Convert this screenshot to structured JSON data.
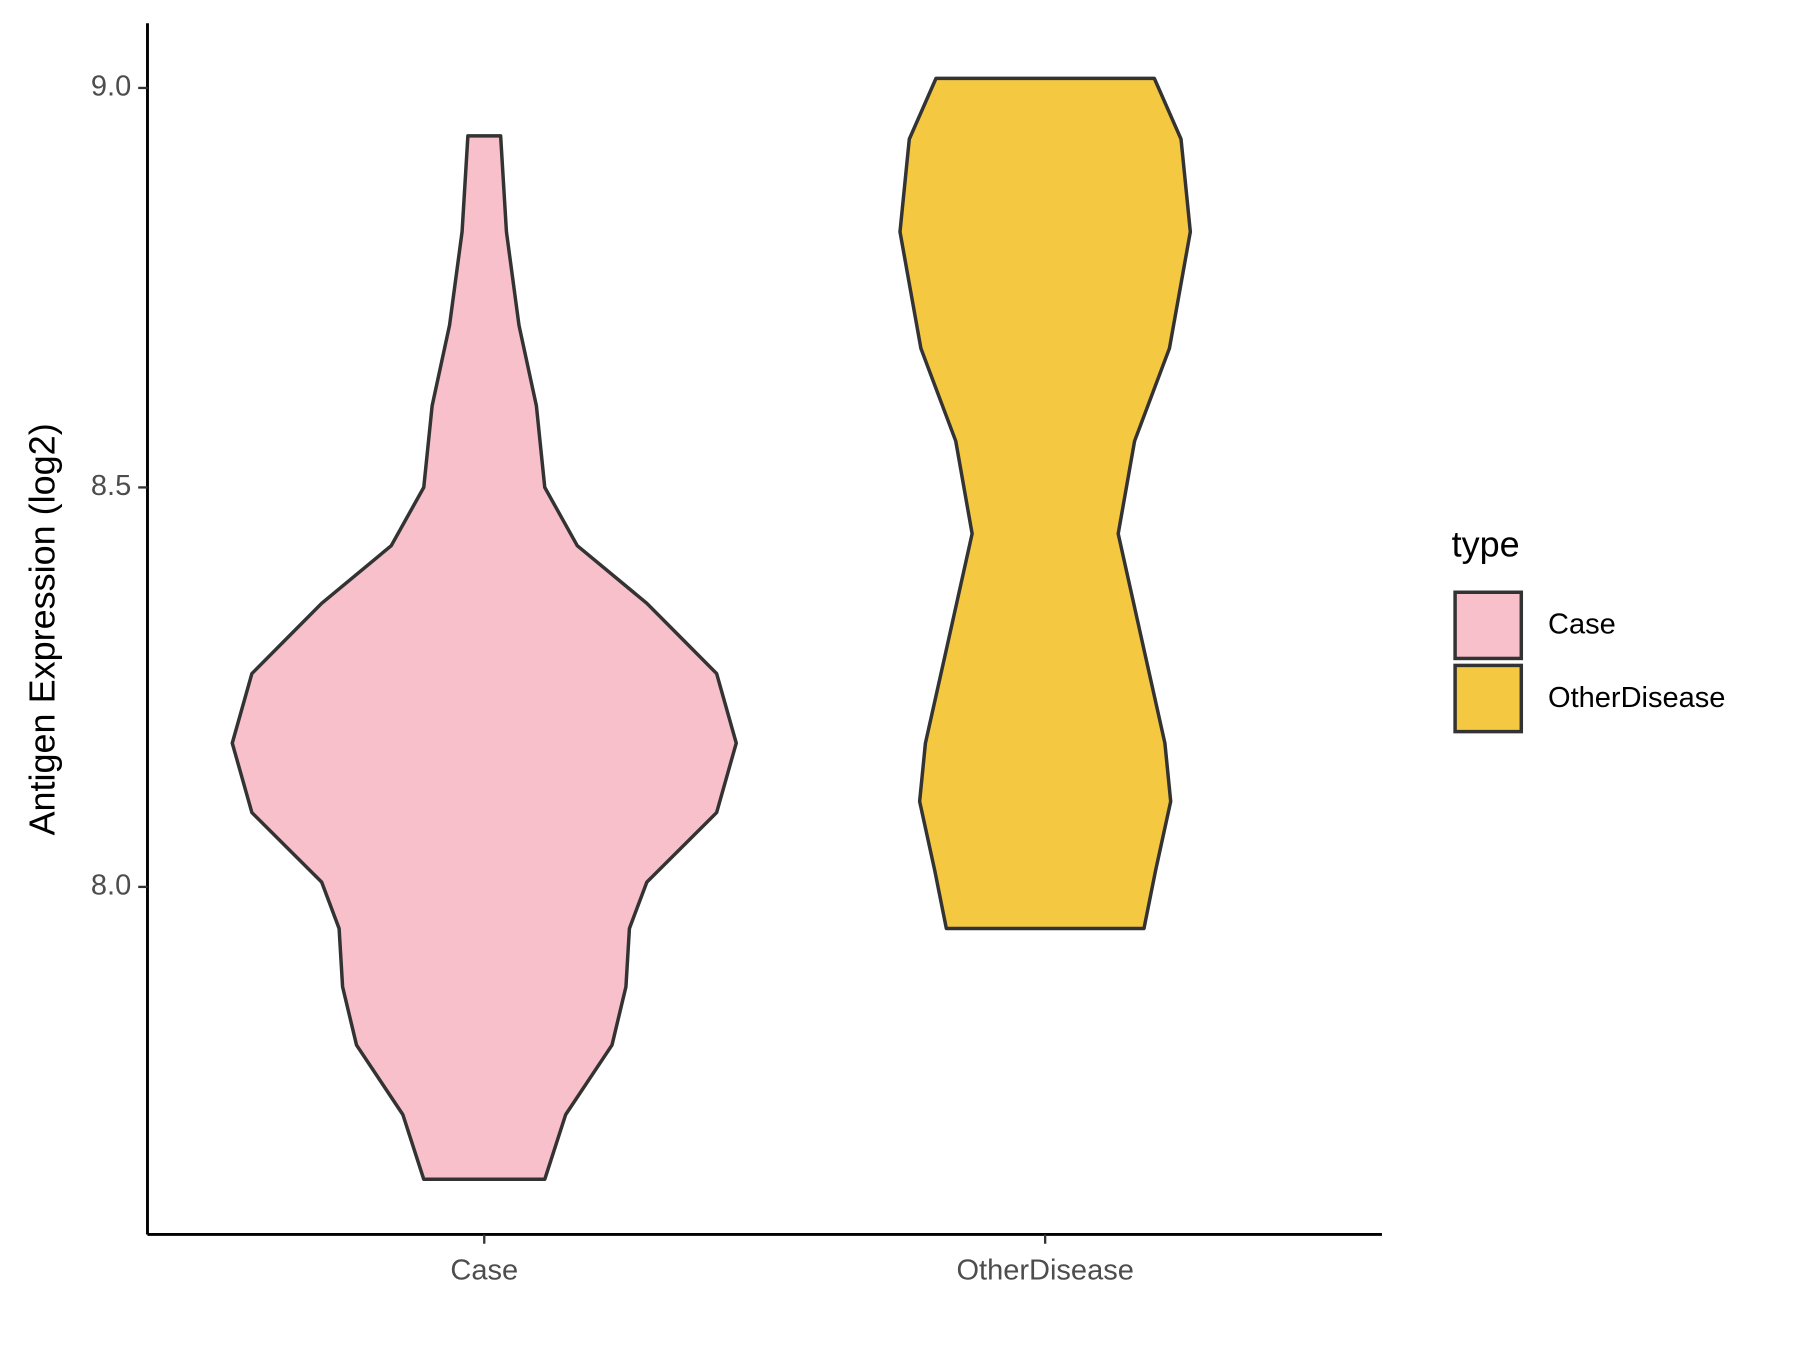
{
  "chart_data": {
    "type": "violin",
    "y_label": "Antigen Expression (log2)",
    "categories": [
      "Case",
      "OtherDisease"
    ],
    "ylim": [
      7.565,
      9.081
    ],
    "yticks": [
      {
        "value": 8,
        "label": "8.0"
      },
      {
        "value": 8.5,
        "label": "8.5"
      },
      {
        "value": 9,
        "label": "9.0"
      }
    ],
    "legend_title": "type",
    "legend_position": "right",
    "series": [
      {
        "name": "Case",
        "color": "#F7C0CB",
        "y": [
          8.94,
          8.82,
          8.703,
          8.602,
          8.5,
          8.427,
          8.355,
          8.267,
          8.18,
          8.093,
          8.006,
          7.948,
          7.875,
          7.802,
          7.715,
          7.634
        ],
        "widths": [
          0.065,
          0.088,
          0.138,
          0.207,
          0.24,
          0.369,
          0.645,
          0.922,
          1,
          0.922,
          0.645,
          0.576,
          0.562,
          0.507,
          0.323,
          0.24
        ]
      },
      {
        "name": "OtherDisease",
        "color": "#F5C842",
        "y": [
          9.012,
          8.936,
          8.82,
          8.674,
          8.558,
          8.442,
          8.297,
          8.18,
          8.107,
          8.02,
          7.948
        ],
        "widths": [
          0.433,
          0.539,
          0.576,
          0.493,
          0.355,
          0.29,
          0.392,
          0.475,
          0.498,
          0.438,
          0.392
        ]
      }
    ]
  }
}
